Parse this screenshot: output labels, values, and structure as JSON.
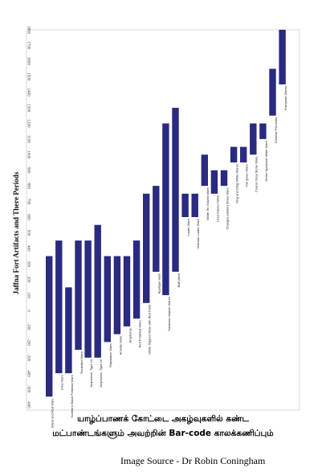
{
  "chart_data": {
    "type": "bar",
    "orientation": "vertical-floating",
    "title": "Jaffna Fort Artifacts and There Periods",
    "xlabel": "",
    "ylabel": "",
    "ylim": [
      -600,
      1800
    ],
    "yticks": [
      -600,
      -500,
      -400,
      -300,
      -200,
      -100,
      0,
      100,
      200,
      300,
      400,
      500,
      600,
      700,
      800,
      900,
      1000,
      1100,
      1200,
      1300,
      1400,
      1500,
      1600,
      1700,
      1800
    ],
    "grid": false,
    "legend": "none",
    "bar_color": "#2a2a80",
    "series": [
      {
        "label": "Black and Red Ware",
        "start": -550,
        "end": 350
      },
      {
        "label": "Grey Ware",
        "start": -400,
        "end": 450
      },
      {
        "label": "Northern Black Polished Ware",
        "start": -400,
        "end": 150
      },
      {
        "label": "Rouletted Ware",
        "start": -250,
        "end": 450
      },
      {
        "label": "Amphorae, Type 10",
        "start": -300,
        "end": 450
      },
      {
        "label": "Amphorae, Type 16",
        "start": -300,
        "end": 550
      },
      {
        "label": "Ostpaliace Ware",
        "start": -200,
        "end": 350
      },
      {
        "label": "Amellia Ware",
        "start": -150,
        "end": 350
      },
      {
        "label": "Amphorae",
        "start": -100,
        "end": 350
      },
      {
        "label": "Red Polished Ware",
        "start": -50,
        "end": 450
      },
      {
        "label": "White Slipped Ware with Red Paint",
        "start": 50,
        "end": 750
      },
      {
        "label": "Applique ware",
        "start": 250,
        "end": 800
      },
      {
        "label": "Sasanian Islamic Wares",
        "start": 100,
        "end": 1200
      },
      {
        "label": "Buff Ware",
        "start": 250,
        "end": 1300
      },
      {
        "label": "Luster Ware",
        "start": 600,
        "end": 750
      },
      {
        "label": "Vietnam Lustre Ware",
        "start": 600,
        "end": 750
      },
      {
        "label": "White Tin Glazed Ware",
        "start": 800,
        "end": 1000
      },
      {
        "label": "Lead Glazed Ware",
        "start": 750,
        "end": 900
      },
      {
        "label": "Changsa painted Stone Ware",
        "start": 800,
        "end": 900
      },
      {
        "label": "Xing and Ding White Wares",
        "start": 950,
        "end": 1050
      },
      {
        "label": "Yue green Ware",
        "start": 950,
        "end": 1050
      },
      {
        "label": "Coarse Grey Stone Ware",
        "start": 1000,
        "end": 1200
      },
      {
        "label": "Green Splashed White Ware",
        "start": 1100,
        "end": 1200
      },
      {
        "label": "Chinese Porcelain",
        "start": 1250,
        "end": 1550
      },
      {
        "label": "European Wares",
        "start": 1450,
        "end": 1800
      }
    ]
  },
  "caption": {
    "line1": "யாழ்ப்பாணக் கோட்டை அகழ்வுகளில் கண்ட",
    "line2": "மட்பாண்டங்களும் அவற்றின் Bar-code காலக்கணிப்பும்"
  },
  "source": "Image Source - Dr Robin Coningham"
}
